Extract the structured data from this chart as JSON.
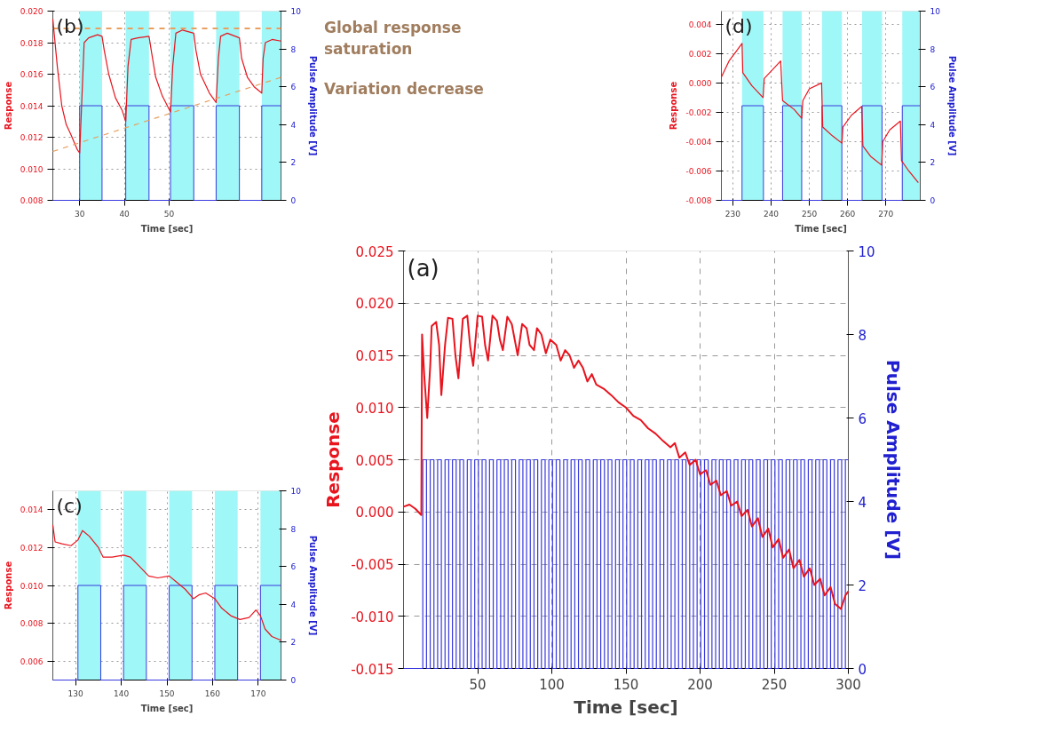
{
  "chart_data": [
    {
      "type": "line",
      "annotations": [
        "(b)"
      ],
      "xlabel": "Time [sec]",
      "ylabel": "Response",
      "y2label": "Pulse Amplitude [V]",
      "xlim": [
        24,
        75
      ],
      "xticks": [
        30,
        40,
        50
      ],
      "ylim": [
        0.008,
        0.02
      ],
      "yticks": [
        {
          "value": 0.008,
          "label": "0.008"
        },
        {
          "value": 0.01,
          "label": "0.010"
        },
        {
          "value": 0.012,
          "label": "0.012"
        },
        {
          "value": 0.014,
          "label": "0.014"
        },
        {
          "value": 0.016,
          "label": "0.016"
        },
        {
          "value": 0.018,
          "label": "0.018"
        },
        {
          "value": 0.02,
          "label": "0.020"
        }
      ],
      "y2lim": [
        0,
        10
      ],
      "y2ticks": [
        0,
        2,
        4,
        6,
        8,
        10
      ],
      "grid": true,
      "bands": [
        {
          "axis": "x",
          "from": 30,
          "to": 35,
          "color": "#9ff7f7"
        },
        {
          "axis": "x",
          "from": 40.3,
          "to": 45.5,
          "color": "#9ff7f7"
        },
        {
          "axis": "x",
          "from": 50.3,
          "to": 55.5,
          "color": "#9ff7f7"
        },
        {
          "axis": "x",
          "from": 60.5,
          "to": 65.7,
          "color": "#9ff7f7"
        },
        {
          "axis": "x",
          "from": 70.7,
          "to": 75,
          "color": "#9ff7f7"
        }
      ],
      "ref_lines": [
        {
          "axis": "y",
          "value": 0.0189,
          "label": "Global response saturation",
          "color": "#e8a060",
          "line_style": "dashed"
        }
      ],
      "series": [
        {
          "type": "step",
          "axis": "y2",
          "color": "#3a3adf",
          "x": [
            24,
            30,
            35,
            40.3,
            45.5,
            50.3,
            55.5,
            60.5,
            65.7,
            70.7,
            75
          ],
          "values": [
            0,
            5,
            0,
            5,
            0,
            5,
            0,
            5,
            0,
            5,
            5
          ]
        },
        {
          "color": "#e8141e",
          "x": [
            24,
            25,
            26,
            27,
            28,
            29.5,
            30,
            30.5,
            31,
            32,
            33,
            34,
            35,
            35.5,
            36.5,
            38,
            39.5,
            40.3,
            40.8,
            41.5,
            43,
            45.5,
            46,
            47,
            48.5,
            50.3,
            50.8,
            51.5,
            53,
            55.5,
            56,
            57,
            59,
            60.5,
            61,
            61.5,
            63,
            65.7,
            66.2,
            67.5,
            69,
            70.7,
            71,
            71.5,
            73,
            75
          ],
          "values": [
            0.0195,
            0.0165,
            0.014,
            0.0128,
            0.0122,
            0.0112,
            0.011,
            0.0145,
            0.018,
            0.0183,
            0.0184,
            0.0185,
            0.0184,
            0.0175,
            0.016,
            0.0145,
            0.0137,
            0.013,
            0.0165,
            0.0182,
            0.0183,
            0.0184,
            0.0175,
            0.0158,
            0.0146,
            0.0136,
            0.0165,
            0.0186,
            0.0188,
            0.0186,
            0.0175,
            0.016,
            0.0148,
            0.0142,
            0.017,
            0.0184,
            0.0186,
            0.0183,
            0.017,
            0.0158,
            0.0152,
            0.0148,
            0.017,
            0.018,
            0.0182,
            0.0181
          ]
        },
        {
          "type": "line",
          "name": "Variation decrease",
          "color": "#e8a060",
          "line_style": "dashed",
          "x": [
            24,
            75
          ],
          "values": [
            0.0111,
            0.0158
          ]
        }
      ]
    },
    {
      "type": "line",
      "annotations": [
        "(d)"
      ],
      "xlabel": "Time [sec]",
      "ylabel": "Response",
      "y2label": "Pulse Amplitude [V]",
      "xlim": [
        227,
        279
      ],
      "xticks": [
        230,
        240,
        250,
        260,
        270
      ],
      "ylim": [
        -0.008,
        0.0049
      ],
      "yticks": [
        {
          "value": -0.008,
          "label": "-0.008"
        },
        {
          "value": -0.006,
          "label": "-0.006"
        },
        {
          "value": -0.004,
          "label": "-0.004"
        },
        {
          "value": -0.002,
          "label": "-0.002"
        },
        {
          "value": 0,
          "label": "0.000"
        },
        {
          "value": 0.002,
          "label": "0.002"
        },
        {
          "value": 0.004,
          "label": "0.004"
        }
      ],
      "y2lim": [
        0,
        10
      ],
      "y2ticks": [
        0,
        2,
        4,
        6,
        8,
        10
      ],
      "grid": true,
      "bands": [
        {
          "axis": "x",
          "from": 232.4,
          "to": 238,
          "color": "#9ff7f7"
        },
        {
          "axis": "x",
          "from": 243,
          "to": 248,
          "color": "#9ff7f7"
        },
        {
          "axis": "x",
          "from": 253.3,
          "to": 258.5,
          "color": "#9ff7f7"
        },
        {
          "axis": "x",
          "from": 263.8,
          "to": 269,
          "color": "#9ff7f7"
        },
        {
          "axis": "x",
          "from": 274.3,
          "to": 279,
          "color": "#9ff7f7"
        }
      ],
      "series": [
        {
          "type": "step",
          "axis": "y2",
          "color": "#3a3adf",
          "x": [
            227,
            232.4,
            238,
            243,
            248,
            253.3,
            258.5,
            263.8,
            269,
            274.3,
            279
          ],
          "values": [
            0,
            5,
            0,
            5,
            0,
            5,
            0,
            5,
            0,
            5,
            5
          ]
        },
        {
          "color": "#e8141e",
          "x": [
            227,
            229,
            231,
            232.4,
            232.6,
            235,
            237.9,
            238.2,
            240,
            242.5,
            243,
            246,
            248,
            248.3,
            250,
            253.2,
            253.5,
            256,
            258.5,
            258.8,
            261,
            263.7,
            264,
            266,
            268.9,
            269.2,
            271,
            273.8,
            274.1,
            276,
            278.5
          ],
          "values": [
            0.0004,
            0.0015,
            0.0022,
            0.0027,
            0.0007,
            -0.0002,
            -0.001,
            0.0003,
            0.0008,
            0.0015,
            -0.0012,
            -0.0018,
            -0.0024,
            -0.0012,
            -0.0004,
            0.0,
            -0.003,
            -0.0036,
            -0.0041,
            -0.003,
            -0.0022,
            -0.0016,
            -0.0043,
            -0.005,
            -0.0056,
            -0.004,
            -0.0032,
            -0.0026,
            -0.0053,
            -0.006,
            -0.0068
          ]
        }
      ]
    },
    {
      "type": "line",
      "annotations": [
        "(a)"
      ],
      "xlabel": "Time [sec]",
      "ylabel": "Response",
      "y2label": "Pulse Amplitude [V]",
      "xlim": [
        0,
        300
      ],
      "xticks": [
        50,
        100,
        150,
        200,
        250,
        300
      ],
      "ylim": [
        -0.015,
        0.025
      ],
      "yticks": [
        {
          "value": -0.015,
          "label": "-0.015"
        },
        {
          "value": -0.01,
          "label": "-0.010"
        },
        {
          "value": -0.005,
          "label": "-0.005"
        },
        {
          "value": 0,
          "label": "0.000"
        },
        {
          "value": 0.005,
          "label": "0.005"
        },
        {
          "value": 0.01,
          "label": "0.010"
        },
        {
          "value": 0.015,
          "label": "0.015"
        },
        {
          "value": 0.02,
          "label": "0.020"
        },
        {
          "value": 0.025,
          "label": "0.025"
        }
      ],
      "y2lim": [
        0,
        10
      ],
      "y2ticks": [
        0,
        2,
        4,
        6,
        8,
        10
      ],
      "grid": true,
      "series": [
        {
          "type": "step",
          "axis": "y2",
          "color": "#3a3adf",
          "x": [
            0,
            13,
            15.5,
            18,
            20.5,
            23,
            25.5,
            28,
            30.5,
            33,
            35.5,
            38,
            40.5,
            43,
            45.5,
            48,
            50.5,
            53,
            55.5,
            58,
            60.5,
            63,
            65.5,
            68,
            70.5,
            73,
            75.5,
            78,
            80.5,
            83,
            85.5,
            88,
            90.5,
            93,
            95.5,
            98,
            100.5,
            103,
            105.5,
            108,
            110.5,
            113,
            115.5,
            118,
            120.5,
            123,
            125.5,
            128,
            130.5,
            133,
            135.5,
            138,
            140.5,
            143,
            145.5,
            148,
            150.5,
            153,
            155.5,
            158,
            160.5,
            163,
            165.5,
            168,
            170.5,
            173,
            175.5,
            178,
            180.5,
            183,
            185.5,
            188,
            190.5,
            193,
            195.5,
            198,
            200.5,
            203,
            205.5,
            208,
            210.5,
            213,
            215.5,
            218,
            220.5,
            223,
            225.5,
            228,
            230.5,
            233,
            235.5,
            238,
            240.5,
            243,
            245.5,
            248,
            250.5,
            253,
            255.5,
            258,
            260.5,
            263,
            265.5,
            268,
            270.5,
            273,
            275.5,
            278,
            280.5,
            283,
            285.5,
            288,
            290.5,
            293,
            295.5,
            298,
            300
          ],
          "values": [
            0,
            5,
            0,
            5,
            0,
            5,
            0,
            5,
            0,
            5,
            0,
            5,
            0,
            5,
            0,
            5,
            0,
            5,
            0,
            5,
            0,
            5,
            0,
            5,
            0,
            5,
            0,
            5,
            0,
            5,
            0,
            5,
            0,
            5,
            0,
            5,
            0,
            5,
            0,
            5,
            0,
            5,
            0,
            5,
            0,
            5,
            0,
            5,
            0,
            5,
            0,
            5,
            0,
            5,
            0,
            5,
            0,
            5,
            0,
            5,
            0,
            5,
            0,
            5,
            0,
            5,
            0,
            5,
            0,
            5,
            0,
            5,
            0,
            5,
            0,
            5,
            0,
            5,
            0,
            5,
            0,
            5,
            0,
            5,
            0,
            5,
            0,
            5,
            0,
            5,
            0,
            5,
            0,
            5,
            0,
            5,
            0,
            5,
            0,
            5,
            0,
            5,
            0,
            5,
            0,
            5,
            0,
            5,
            0,
            5,
            0,
            5,
            0,
            5,
            0,
            5,
            5
          ]
        },
        {
          "color": "#e8141e",
          "x": [
            0,
            4,
            8,
            12,
            12.5,
            14,
            16,
            18,
            19,
            22,
            24,
            25.5,
            28,
            30,
            33,
            35,
            37,
            40,
            43,
            45,
            47,
            50,
            53,
            55,
            57,
            60,
            63,
            65,
            67,
            70,
            73,
            75,
            77,
            80,
            83,
            85,
            88,
            90,
            93,
            96,
            99,
            103,
            106,
            109,
            112,
            115,
            118,
            121,
            124,
            127,
            130,
            135,
            140,
            145,
            150,
            155,
            160,
            165,
            170,
            175,
            180,
            183,
            186,
            190,
            193,
            197,
            200,
            204,
            207,
            211,
            214,
            218,
            221,
            225,
            228,
            232,
            235,
            239,
            242,
            246,
            249,
            253,
            256,
            260,
            263,
            267,
            270,
            274,
            277,
            281,
            284,
            288,
            291,
            295,
            298,
            300
          ],
          "values": [
            0.0005,
            0.0007,
            0.0003,
            -0.0003,
            0.017,
            0.013,
            0.009,
            0.014,
            0.0178,
            0.0182,
            0.016,
            0.0112,
            0.016,
            0.0186,
            0.0185,
            0.015,
            0.0128,
            0.0185,
            0.0188,
            0.0158,
            0.014,
            0.0188,
            0.0187,
            0.016,
            0.0145,
            0.0188,
            0.0183,
            0.0165,
            0.0155,
            0.0187,
            0.018,
            0.0165,
            0.015,
            0.018,
            0.0176,
            0.016,
            0.0155,
            0.0176,
            0.017,
            0.0152,
            0.0165,
            0.016,
            0.0145,
            0.0155,
            0.015,
            0.0138,
            0.0145,
            0.0138,
            0.0125,
            0.0132,
            0.0122,
            0.0118,
            0.0112,
            0.0105,
            0.01,
            0.0092,
            0.0088,
            0.008,
            0.0075,
            0.0068,
            0.0062,
            0.0066,
            0.0052,
            0.0057,
            0.0045,
            0.005,
            0.0036,
            0.004,
            0.0026,
            0.003,
            0.0016,
            0.002,
            0.0006,
            0.001,
            -0.0004,
            0.0002,
            -0.0014,
            -0.0006,
            -0.0024,
            -0.0016,
            -0.0034,
            -0.0026,
            -0.0044,
            -0.0036,
            -0.0054,
            -0.0046,
            -0.0062,
            -0.0054,
            -0.007,
            -0.0064,
            -0.008,
            -0.0072,
            -0.0088,
            -0.0093,
            -0.008,
            -0.0076
          ]
        }
      ]
    },
    {
      "type": "line",
      "annotations": [
        "(c)"
      ],
      "xlabel": "Time [sec]",
      "ylabel": "Response",
      "y2label": "Pulse Amplitude [V]",
      "xlim": [
        125,
        175
      ],
      "xticks": [
        130,
        140,
        150,
        160,
        170
      ],
      "ylim": [
        0.005,
        0.015
      ],
      "yticks": [
        {
          "value": 0.006,
          "label": "0.006"
        },
        {
          "value": 0.008,
          "label": "0.008"
        },
        {
          "value": 0.01,
          "label": "0.010"
        },
        {
          "value": 0.012,
          "label": "0.012"
        },
        {
          "value": 0.014,
          "label": "0.014"
        }
      ],
      "y2lim": [
        0,
        10
      ],
      "y2ticks": [
        0,
        2,
        4,
        6,
        8,
        10
      ],
      "grid": true,
      "bands": [
        {
          "axis": "x",
          "from": 130.5,
          "to": 135.5,
          "color": "#9ff7f7"
        },
        {
          "axis": "x",
          "from": 140.5,
          "to": 145.5,
          "color": "#9ff7f7"
        },
        {
          "axis": "x",
          "from": 150.5,
          "to": 155.5,
          "color": "#9ff7f7"
        },
        {
          "axis": "x",
          "from": 160.5,
          "to": 165.5,
          "color": "#9ff7f7"
        },
        {
          "axis": "x",
          "from": 170.5,
          "to": 175,
          "color": "#9ff7f7"
        }
      ],
      "series": [
        {
          "type": "step",
          "axis": "y2",
          "color": "#3a3adf",
          "x": [
            125,
            130.5,
            135.5,
            140.5,
            145.5,
            150.5,
            155.5,
            160.5,
            165.5,
            170.5,
            175
          ],
          "values": [
            0,
            5,
            0,
            5,
            0,
            5,
            0,
            5,
            0,
            5,
            5
          ]
        },
        {
          "color": "#e8141e",
          "x": [
            125,
            125.5,
            127,
            129,
            130.5,
            131.5,
            133,
            135,
            136,
            138,
            140.5,
            142,
            144,
            146,
            148,
            150.5,
            152,
            154,
            155.8,
            157,
            158.5,
            160.5,
            162,
            164,
            166,
            168,
            169.5,
            170.5,
            171.5,
            173,
            175
          ],
          "values": [
            0.0132,
            0.0123,
            0.0122,
            0.0121,
            0.0124,
            0.0129,
            0.0126,
            0.012,
            0.0115,
            0.0115,
            0.0116,
            0.0115,
            0.011,
            0.0105,
            0.0104,
            0.0105,
            0.0102,
            0.0098,
            0.0093,
            0.0095,
            0.0096,
            0.0093,
            0.0088,
            0.0084,
            0.0082,
            0.0083,
            0.0087,
            0.0084,
            0.0077,
            0.0073,
            0.0071
          ]
        }
      ]
    }
  ]
}
